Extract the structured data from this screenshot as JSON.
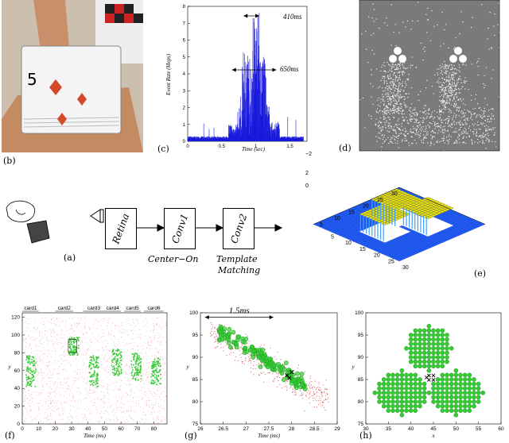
{
  "panel_labels": {
    "a": "(a)",
    "b": "(b)",
    "c": "(c)",
    "d": "(d)",
    "e": "(e)",
    "f": "(f)",
    "g": "(g)",
    "h": "(h)"
  },
  "pipeline": {
    "retina": "Retina",
    "conv1": "Conv1",
    "conv2": "Conv2",
    "conv1_caption": "Center−On",
    "conv2_caption_1": "Template",
    "conv2_caption_2": "Matching"
  },
  "photo_b": {
    "card_rank": "5"
  },
  "chart_c": {
    "xlabel": "Time (sec)",
    "ylabel": "Event Rate (Meps)",
    "xticks": [
      "0",
      "0.5",
      "1",
      "1.5"
    ],
    "yticks": [
      "0",
      "1",
      "2",
      "3",
      "4",
      "5",
      "6",
      "7",
      "8"
    ],
    "annot_410": "410ms",
    "annot_650": "650ms"
  },
  "chart_e": {
    "zticks": [
      "2",
      "0",
      "−2"
    ],
    "xticks": [
      "30",
      "25",
      "20",
      "15",
      "10",
      "5"
    ],
    "yticks": [
      "5",
      "10",
      "15",
      "20",
      "25",
      "30"
    ]
  },
  "chart_f": {
    "xlabel": "Time (ms)",
    "ylabel": "y",
    "xticks": [
      "0",
      "10",
      "20",
      "30",
      "40",
      "50",
      "60",
      "70",
      "80"
    ],
    "yticks": [
      "0",
      "20",
      "40",
      "60",
      "80",
      "100",
      "120"
    ],
    "cards": [
      "card1",
      "card2",
      "card3",
      "card4",
      "card5",
      "card6"
    ]
  },
  "chart_g": {
    "xlabel": "Time (ms)",
    "ylabel": "y",
    "xticks": [
      "26",
      "26.5",
      "27",
      "27.5",
      "28",
      "28.5",
      "29"
    ],
    "yticks": [
      "75",
      "80",
      "85",
      "90",
      "95",
      "100"
    ],
    "annot": "1.5ms"
  },
  "chart_h": {
    "xlabel": "x",
    "ylabel": "y",
    "xticks": [
      "30",
      "35",
      "40",
      "45",
      "50",
      "55",
      "60"
    ],
    "yticks": [
      "75",
      "80",
      "85",
      "90",
      "95",
      "100"
    ]
  },
  "colors": {
    "blue": "#1a1adb",
    "green": "#33cc33",
    "pink": "#f2a0a0",
    "surface_blue": "#1e5cff",
    "surface_yellow": "#f2e600"
  }
}
